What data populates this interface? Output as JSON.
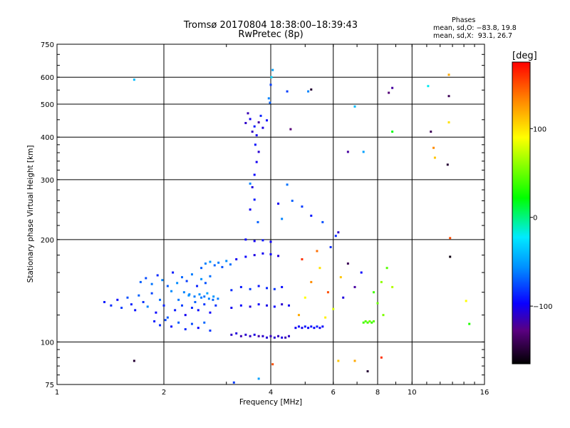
{
  "header": {
    "title_line1": "Tromsø 20170804 18:38:00–18:39:43",
    "title_line2": "RwPretec (8p)",
    "stats_title": "Phases",
    "stats_o": "mean, sd,O: −83.8, 19.8",
    "stats_x": "mean, sd,X:  93.1, 26.7"
  },
  "colorbar": {
    "title": "[deg]",
    "range": [
      -165,
      175
    ],
    "ticks": [
      {
        "value": 100,
        "label": "100"
      },
      {
        "value": 0,
        "label": "0"
      },
      {
        "value": -100,
        "label": "−100"
      }
    ]
  },
  "chart_data": {
    "type": "scatter",
    "title": "Tromsø 20170804 18:38:00–18:39:43 RwPretec (8p)",
    "xlabel": "Frequency [MHz]",
    "ylabel": "Stationary phase Virtual Height [km]",
    "x_scale": "log",
    "y_scale": "log",
    "xlim": [
      1,
      16
    ],
    "ylim": [
      75,
      750
    ],
    "grid": true,
    "legend": "none",
    "colorbar_label": "[deg]",
    "x_ticks": [
      {
        "value": 1,
        "label": "1"
      },
      {
        "value": 2,
        "label": "2"
      },
      {
        "value": 4,
        "label": "4"
      },
      {
        "value": 6,
        "label": "6"
      },
      {
        "value": 8,
        "label": "8"
      },
      {
        "value": 10,
        "label": "10"
      },
      {
        "value": 16,
        "label": "16"
      }
    ],
    "y_ticks": [
      {
        "value": 75,
        "label": "75"
      },
      {
        "value": 100,
        "label": "100"
      },
      {
        "value": 200,
        "label": "200"
      },
      {
        "value": 300,
        "label": "300"
      },
      {
        "value": 400,
        "label": "400"
      },
      {
        "value": 500,
        "label": "500"
      },
      {
        "value": 600,
        "label": "600"
      },
      {
        "value": 750,
        "label": "750"
      }
    ],
    "points": [
      [
        1.36,
        131,
        -90
      ],
      [
        1.42,
        128,
        -85
      ],
      [
        1.48,
        133,
        -95
      ],
      [
        1.52,
        126,
        -80
      ],
      [
        1.58,
        135,
        -75
      ],
      [
        1.62,
        129,
        -88
      ],
      [
        1.66,
        124,
        -92
      ],
      [
        1.7,
        137,
        -70
      ],
      [
        1.75,
        131,
        -84
      ],
      [
        1.8,
        127,
        -60
      ],
      [
        1.85,
        139,
        -78
      ],
      [
        1.9,
        122,
        -96
      ],
      [
        1.95,
        133,
        -66
      ],
      [
        2.0,
        128,
        -88
      ],
      [
        2.05,
        118,
        -72
      ],
      [
        2.1,
        141,
        -58
      ],
      [
        2.15,
        124,
        -90
      ],
      [
        2.2,
        133,
        -64
      ],
      [
        2.25,
        128,
        -80
      ],
      [
        2.3,
        120,
        -100
      ],
      [
        2.35,
        137,
        -56
      ],
      [
        2.4,
        126,
        -86
      ],
      [
        2.45,
        131,
        -70
      ],
      [
        2.5,
        124,
        -94
      ],
      [
        2.55,
        135,
        -62
      ],
      [
        2.6,
        129,
        -82
      ],
      [
        2.65,
        139,
        -50
      ],
      [
        2.7,
        122,
        -98
      ],
      [
        2.75,
        133,
        -68
      ],
      [
        2.8,
        128,
        -84
      ],
      [
        1.72,
        150,
        -70
      ],
      [
        1.78,
        154,
        -76
      ],
      [
        1.85,
        148,
        -64
      ],
      [
        1.92,
        157,
        -86
      ],
      [
        1.98,
        152,
        -60
      ],
      [
        2.05,
        146,
        -72
      ],
      [
        2.12,
        160,
        -90
      ],
      [
        2.18,
        149,
        -58
      ],
      [
        2.25,
        155,
        -68
      ],
      [
        2.32,
        151,
        -80
      ],
      [
        2.4,
        158,
        -62
      ],
      [
        2.48,
        146,
        -88
      ],
      [
        2.55,
        153,
        -56
      ],
      [
        2.62,
        149,
        -74
      ],
      [
        2.7,
        156,
        -66
      ],
      [
        2.55,
        165,
        -70
      ],
      [
        2.62,
        170,
        -60
      ],
      [
        2.7,
        172,
        -55
      ],
      [
        2.78,
        168,
        -68
      ],
      [
        2.85,
        171,
        -62
      ],
      [
        2.92,
        166,
        -74
      ],
      [
        3.0,
        173,
        -58
      ],
      [
        3.08,
        169,
        -66
      ],
      [
        2.28,
        140,
        -60
      ],
      [
        2.36,
        138,
        -58
      ],
      [
        2.44,
        136,
        -62
      ],
      [
        2.52,
        138,
        -56
      ],
      [
        2.6,
        136,
        -64
      ],
      [
        2.68,
        134,
        -60
      ],
      [
        2.76,
        136,
        -54
      ],
      [
        2.84,
        134,
        -62
      ],
      [
        1.88,
        115,
        -90
      ],
      [
        1.95,
        112,
        -84
      ],
      [
        2.02,
        116,
        -78
      ],
      [
        2.1,
        111,
        -92
      ],
      [
        2.2,
        114,
        -70
      ],
      [
        2.3,
        109,
        -86
      ],
      [
        2.4,
        113,
        -76
      ],
      [
        2.5,
        110,
        -96
      ],
      [
        2.6,
        114,
        -68
      ],
      [
        2.7,
        108,
        -82
      ],
      [
        3.1,
        105,
        -110
      ],
      [
        3.2,
        106,
        -105
      ],
      [
        3.3,
        104,
        -115
      ],
      [
        3.4,
        105,
        -108
      ],
      [
        3.5,
        104,
        -112
      ],
      [
        3.6,
        105,
        -104
      ],
      [
        3.7,
        104,
        -118
      ],
      [
        3.8,
        104,
        -110
      ],
      [
        3.9,
        103,
        -106
      ],
      [
        4.0,
        104,
        -114
      ],
      [
        4.1,
        103,
        -108
      ],
      [
        4.2,
        104,
        -112
      ],
      [
        4.3,
        103,
        -104
      ],
      [
        4.4,
        103,
        -116
      ],
      [
        4.5,
        104,
        -110
      ],
      [
        4.7,
        110,
        -100
      ],
      [
        4.8,
        111,
        -95
      ],
      [
        4.9,
        110,
        -102
      ],
      [
        5.0,
        111,
        -90
      ],
      [
        5.1,
        110,
        -98
      ],
      [
        5.2,
        111,
        -92
      ],
      [
        5.3,
        110,
        -96
      ],
      [
        5.4,
        111,
        -88
      ],
      [
        5.5,
        110,
        -100
      ],
      [
        5.6,
        111,
        -94
      ],
      [
        7.3,
        114,
        40
      ],
      [
        7.4,
        115,
        45
      ],
      [
        7.5,
        114,
        42
      ],
      [
        7.6,
        115,
        50
      ],
      [
        7.7,
        114,
        38
      ],
      [
        7.8,
        115,
        46
      ],
      [
        3.1,
        126,
        -100
      ],
      [
        3.3,
        128,
        -95
      ],
      [
        3.5,
        127,
        -105
      ],
      [
        3.7,
        129,
        -98
      ],
      [
        3.9,
        128,
        -102
      ],
      [
        4.1,
        127,
        -96
      ],
      [
        4.3,
        129,
        -108
      ],
      [
        4.5,
        128,
        -100
      ],
      [
        3.1,
        142,
        -85
      ],
      [
        3.3,
        145,
        -90
      ],
      [
        3.5,
        143,
        -80
      ],
      [
        3.7,
        146,
        -92
      ],
      [
        3.9,
        144,
        -86
      ],
      [
        4.1,
        143,
        -82
      ],
      [
        4.3,
        145,
        -94
      ],
      [
        3.2,
        175,
        -100
      ],
      [
        3.4,
        178,
        -96
      ],
      [
        3.6,
        180,
        -104
      ],
      [
        3.8,
        182,
        -100
      ],
      [
        4.0,
        181,
        -98
      ],
      [
        4.2,
        179,
        -106
      ],
      [
        3.4,
        200,
        -95
      ],
      [
        3.6,
        198,
        -100
      ],
      [
        3.8,
        199,
        -92
      ],
      [
        4.0,
        197,
        -98
      ],
      [
        3.5,
        245,
        -100
      ],
      [
        3.6,
        262,
        -90
      ],
      [
        3.55,
        285,
        -105
      ],
      [
        3.6,
        310,
        -95
      ],
      [
        3.65,
        338,
        -100
      ],
      [
        3.7,
        362,
        -108
      ],
      [
        3.62,
        380,
        -92
      ],
      [
        3.68,
        225,
        -70
      ],
      [
        3.5,
        292,
        -60
      ],
      [
        3.4,
        440,
        -110
      ],
      [
        3.5,
        452,
        -100
      ],
      [
        3.6,
        430,
        -90
      ],
      [
        3.7,
        442,
        -120
      ],
      [
        3.8,
        426,
        -104
      ],
      [
        3.9,
        448,
        -96
      ],
      [
        3.55,
        415,
        -112
      ],
      [
        3.75,
        462,
        -88
      ],
      [
        3.65,
        405,
        -100
      ],
      [
        3.45,
        470,
        -115
      ],
      [
        4.0,
        570,
        -80
      ],
      [
        3.95,
        520,
        -60
      ],
      [
        4.02,
        600,
        -30
      ],
      [
        4.05,
        630,
        -50
      ],
      [
        3.98,
        505,
        -70
      ],
      [
        4.8,
        120,
        120
      ],
      [
        5.0,
        135,
        90
      ],
      [
        5.2,
        150,
        130
      ],
      [
        5.5,
        165,
        100
      ],
      [
        5.8,
        140,
        150
      ],
      [
        6.0,
        125,
        80
      ],
      [
        6.3,
        155,
        110
      ],
      [
        5.4,
        185,
        140
      ],
      [
        4.9,
        175,
        160
      ],
      [
        5.7,
        118,
        95
      ],
      [
        6.6,
        170,
        -140
      ],
      [
        6.9,
        145,
        -120
      ],
      [
        7.2,
        160,
        -95
      ],
      [
        6.4,
        135,
        -105
      ],
      [
        5.9,
        190,
        -85
      ],
      [
        6.2,
        210,
        -110
      ],
      [
        7.8,
        140,
        40
      ],
      [
        8.0,
        130,
        50
      ],
      [
        8.2,
        150,
        60
      ],
      [
        8.5,
        165,
        45
      ],
      [
        8.8,
        145,
        70
      ],
      [
        8.3,
        120,
        55
      ],
      [
        4.3,
        230,
        -60
      ],
      [
        4.6,
        260,
        -70
      ],
      [
        4.9,
        250,
        -80
      ],
      [
        5.2,
        235,
        -90
      ],
      [
        5.6,
        225,
        -75
      ],
      [
        6.1,
        205,
        -85
      ],
      [
        4.45,
        290,
        -65
      ],
      [
        4.2,
        255,
        -100
      ],
      [
        1.65,
        590,
        -40
      ],
      [
        1.65,
        88,
        -150
      ],
      [
        6.6,
        362,
        -120
      ],
      [
        7.3,
        362,
        -50
      ],
      [
        8.8,
        558,
        -120
      ],
      [
        8.8,
        415,
        20
      ],
      [
        8.6,
        540,
        -130
      ],
      [
        11.1,
        565,
        -20
      ],
      [
        12.7,
        610,
        120
      ],
      [
        12.7,
        528,
        -140
      ],
      [
        12.7,
        442,
        100
      ],
      [
        12.6,
        332,
        -150
      ],
      [
        11.3,
        415,
        -140
      ],
      [
        11.5,
        372,
        130
      ],
      [
        11.6,
        348,
        110
      ],
      [
        12.8,
        202,
        150
      ],
      [
        12.8,
        178,
        -160
      ],
      [
        14.2,
        132,
        90
      ],
      [
        14.5,
        113,
        30
      ],
      [
        6.9,
        492,
        -40
      ],
      [
        5.1,
        545,
        -60
      ],
      [
        5.2,
        552,
        -150
      ],
      [
        4.55,
        422,
        -130
      ],
      [
        4.45,
        545,
        -80
      ],
      [
        3.7,
        78,
        -50
      ],
      [
        3.15,
        76,
        -80
      ],
      [
        4.05,
        86,
        150
      ],
      [
        6.2,
        88,
        110
      ],
      [
        6.9,
        88,
        120
      ],
      [
        7.5,
        82,
        -150
      ],
      [
        8.2,
        90,
        160
      ]
    ]
  }
}
